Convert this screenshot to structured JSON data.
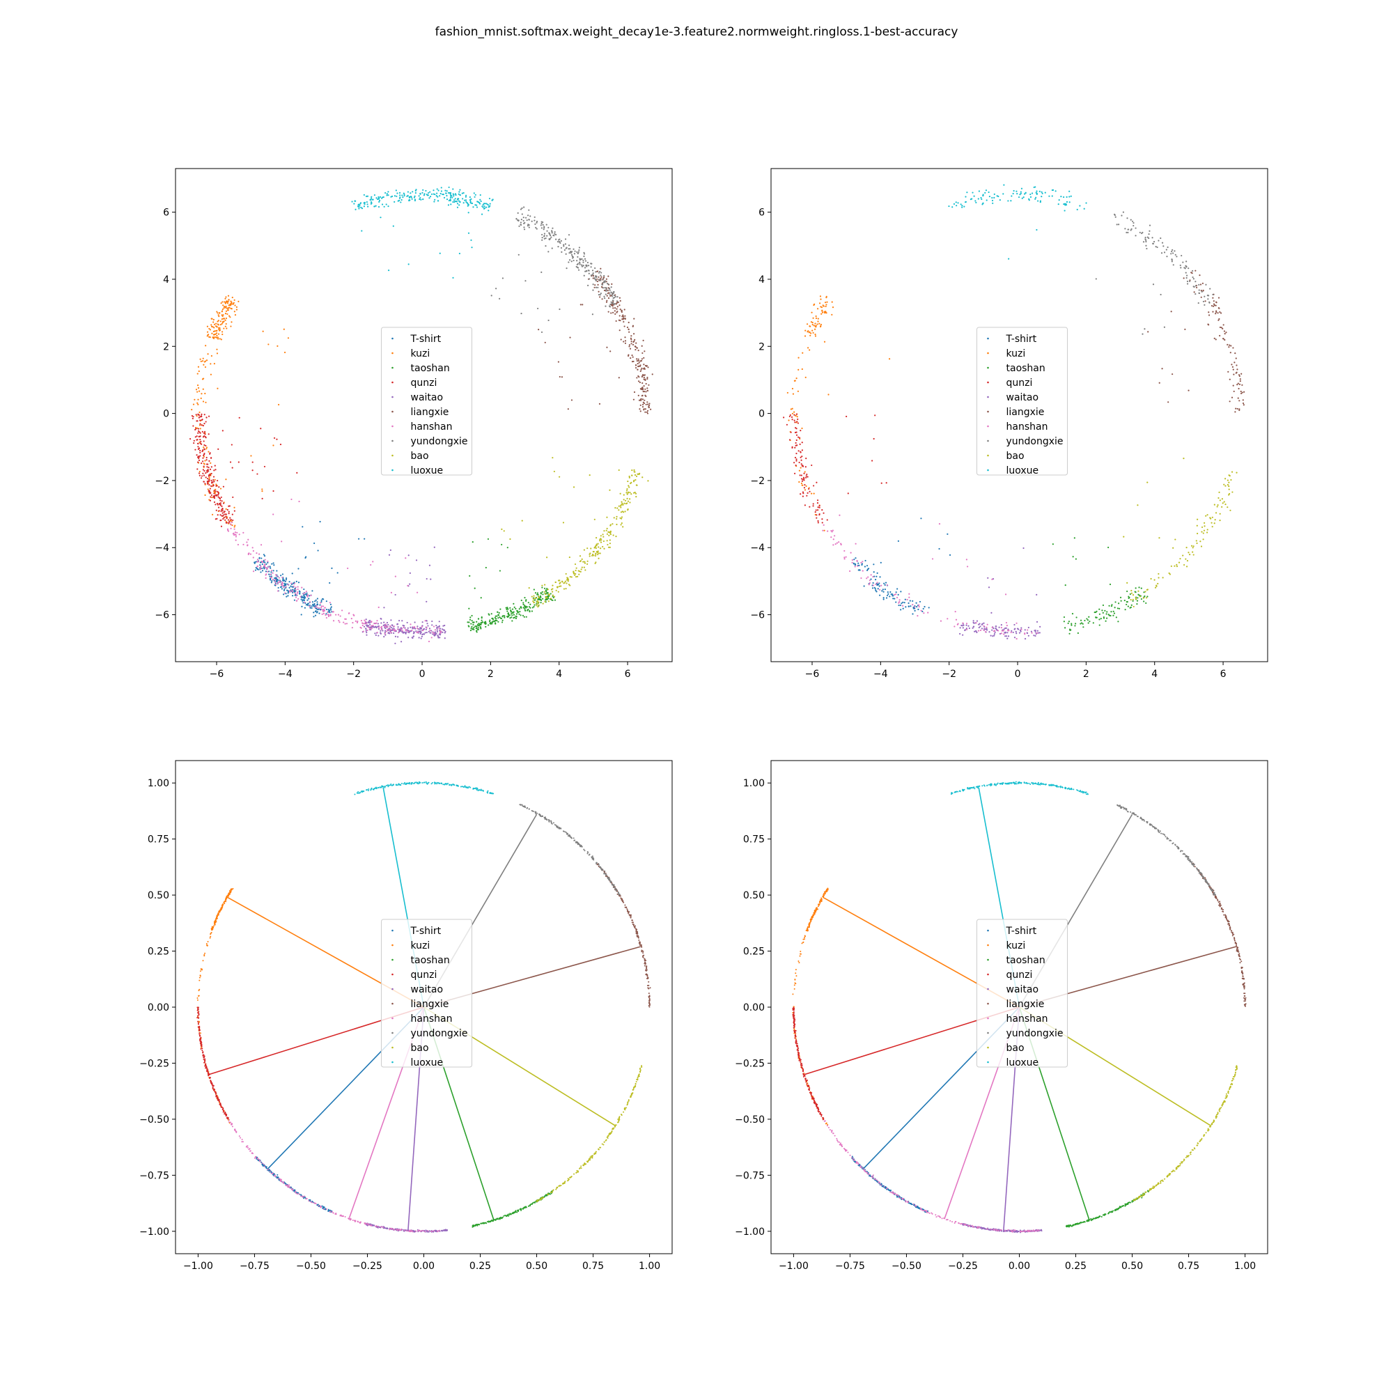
{
  "suptitle": "fashion_mnist.softmax.weight_decay1e-3.feature2.normweight.ringloss.1-best-accuracy",
  "classes": [
    "T-shirt",
    "kuzi",
    "taoshan",
    "qunzi",
    "waitao",
    "liangxie",
    "hanshan",
    "yundongxie",
    "bao",
    "luoxue"
  ],
  "colors": [
    "#1f77b4",
    "#ff7f0e",
    "#2ca02c",
    "#d62728",
    "#9467bd",
    "#8c564b",
    "#e377c2",
    "#7f7f7f",
    "#bcbd22",
    "#17becf"
  ],
  "chart_data": [
    {
      "type": "scatter",
      "panel": "top-left",
      "xlim": [
        -7.2,
        7.3
      ],
      "ylim": [
        -7.4,
        7.3
      ],
      "xticks": [
        -6,
        -4,
        -2,
        0,
        2,
        4,
        6
      ],
      "yticks": [
        -6,
        -4,
        -2,
        0,
        2,
        4,
        6
      ],
      "legend": "center",
      "ring_radius": 6.5,
      "series": [
        {
          "name": "T-shirt",
          "angle_range_deg": [
            222,
            246
          ]
        },
        {
          "name": "kuzi",
          "angle_range_deg": [
            148,
            212
          ],
          "dense_angle_deg": [
            148,
            160
          ]
        },
        {
          "name": "taoshan",
          "angle_range_deg": [
            282,
            305
          ]
        },
        {
          "name": "qunzi",
          "angle_range_deg": [
            180,
            210
          ]
        },
        {
          "name": "waitao",
          "angle_range_deg": [
            255,
            276
          ]
        },
        {
          "name": "liangxie",
          "angle_range_deg": [
            0,
            40
          ]
        },
        {
          "name": "hanshan",
          "angle_range_deg": [
            210,
            275
          ]
        },
        {
          "name": "yundongxie",
          "angle_range_deg": [
            30,
            65
          ]
        },
        {
          "name": "bao",
          "angle_range_deg": [
            300,
            345
          ]
        },
        {
          "name": "luoxue",
          "angle_range_deg": [
            72,
            108
          ]
        }
      ]
    },
    {
      "type": "scatter",
      "panel": "top-right",
      "xlim": [
        -7.2,
        7.3
      ],
      "ylim": [
        -7.4,
        7.3
      ],
      "xticks": [
        -6,
        -4,
        -2,
        0,
        2,
        4,
        6
      ],
      "yticks": [
        -6,
        -4,
        -2,
        0,
        2,
        4,
        6
      ],
      "legend": "center",
      "ring_radius": 6.5,
      "series": [
        {
          "name": "T-shirt",
          "angle_range_deg": [
            222,
            246
          ]
        },
        {
          "name": "kuzi",
          "angle_range_deg": [
            148,
            212
          ],
          "dense_angle_deg": [
            148,
            160
          ]
        },
        {
          "name": "taoshan",
          "angle_range_deg": [
            282,
            305
          ]
        },
        {
          "name": "qunzi",
          "angle_range_deg": [
            180,
            210
          ]
        },
        {
          "name": "waitao",
          "angle_range_deg": [
            255,
            276
          ]
        },
        {
          "name": "liangxie",
          "angle_range_deg": [
            0,
            40
          ]
        },
        {
          "name": "hanshan",
          "angle_range_deg": [
            210,
            275
          ]
        },
        {
          "name": "yundongxie",
          "angle_range_deg": [
            30,
            65
          ]
        },
        {
          "name": "bao",
          "angle_range_deg": [
            300,
            345
          ]
        },
        {
          "name": "luoxue",
          "angle_range_deg": [
            72,
            108
          ]
        }
      ]
    },
    {
      "type": "scatter",
      "panel": "bottom-left",
      "xlim": [
        -1.1,
        1.1
      ],
      "ylim": [
        -1.1,
        1.1
      ],
      "xticks": [
        "-1.00",
        "-0.75",
        "-0.50",
        "-0.25",
        "0.00",
        "0.25",
        "0.50",
        "0.75",
        "1.00"
      ],
      "yticks": [
        "-1.00",
        "-0.75",
        "-0.50",
        "-0.25",
        "0.00",
        "0.25",
        "0.50",
        "0.75",
        "1.00"
      ],
      "legend": "center",
      "ring_radius": 1.0,
      "weight_vectors": [
        {
          "name": "T-shirt",
          "end": [
            -0.69,
            -0.72
          ]
        },
        {
          "name": "kuzi",
          "end": [
            -0.87,
            0.49
          ]
        },
        {
          "name": "taoshan",
          "end": [
            0.31,
            -0.95
          ]
        },
        {
          "name": "qunzi",
          "end": [
            -0.95,
            -0.3
          ]
        },
        {
          "name": "waitao",
          "end": [
            -0.07,
            -1.0
          ]
        },
        {
          "name": "liangxie",
          "end": [
            0.96,
            0.27
          ]
        },
        {
          "name": "hanshan",
          "end": [
            -0.33,
            -0.94
          ]
        },
        {
          "name": "yundongxie",
          "end": [
            0.5,
            0.86
          ]
        },
        {
          "name": "bao",
          "end": [
            0.85,
            -0.53
          ]
        },
        {
          "name": "luoxue",
          "end": [
            -0.18,
            0.98
          ]
        }
      ]
    },
    {
      "type": "scatter",
      "panel": "bottom-right",
      "xlim": [
        -1.1,
        1.1
      ],
      "ylim": [
        -1.1,
        1.1
      ],
      "xticks": [
        "-1.00",
        "-0.75",
        "-0.50",
        "-0.25",
        "0.00",
        "0.25",
        "0.50",
        "0.75",
        "1.00"
      ],
      "yticks": [
        "-1.00",
        "-0.75",
        "-0.50",
        "-0.25",
        "0.00",
        "0.25",
        "0.50",
        "0.75",
        "1.00"
      ],
      "legend": "center",
      "ring_radius": 1.0,
      "weight_vectors": [
        {
          "name": "T-shirt",
          "end": [
            -0.69,
            -0.72
          ]
        },
        {
          "name": "kuzi",
          "end": [
            -0.87,
            0.49
          ]
        },
        {
          "name": "taoshan",
          "end": [
            0.31,
            -0.95
          ]
        },
        {
          "name": "qunzi",
          "end": [
            -0.95,
            -0.3
          ]
        },
        {
          "name": "waitao",
          "end": [
            -0.07,
            -1.0
          ]
        },
        {
          "name": "liangxie",
          "end": [
            0.96,
            0.27
          ]
        },
        {
          "name": "hanshan",
          "end": [
            -0.33,
            -0.94
          ]
        },
        {
          "name": "yundongxie",
          "end": [
            0.5,
            0.86
          ]
        },
        {
          "name": "bao",
          "end": [
            0.85,
            -0.53
          ]
        },
        {
          "name": "luoxue",
          "end": [
            -0.18,
            0.98
          ]
        }
      ]
    }
  ]
}
